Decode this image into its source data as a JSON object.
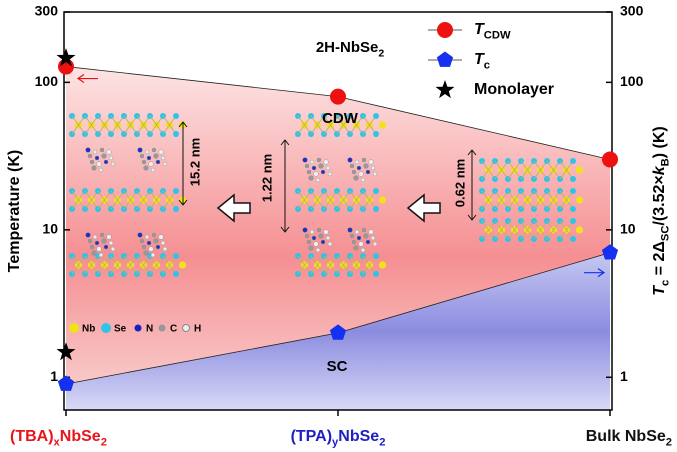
{
  "chart_data": {
    "type": "phase",
    "categories": [
      [
        {
          "text": "(TBA)"
        },
        {
          "text": "x",
          "sub": true
        },
        {
          "text": "NbSe"
        },
        {
          "text": "2",
          "sub": true
        }
      ],
      [
        {
          "text": "(TPA)"
        },
        {
          "text": "y",
          "sub": true
        },
        {
          "text": "NbSe"
        },
        {
          "text": "2",
          "sub": true
        }
      ],
      [
        {
          "text": "Bulk NbSe"
        },
        {
          "text": "2",
          "sub": true
        }
      ]
    ],
    "category_colors": [
      "#e8141c",
      "#2020c0",
      "#111111"
    ],
    "ylabel": [
      {
        "text": "Temperature (K)"
      }
    ],
    "y2label": [
      {
        "text": "T",
        "italic": true
      },
      {
        "text": "c",
        "sub": true
      },
      {
        "text": " = 2Δ"
      },
      {
        "text": "SC",
        "sub": true
      },
      {
        "text": "/(3.52×"
      },
      {
        "text": "k",
        "italic": true
      },
      {
        "text": "B",
        "sub": true
      },
      {
        "text": ") (K)"
      }
    ],
    "log_y": true,
    "ylim": [
      0.6,
      300
    ],
    "yticks": [
      1,
      10,
      100,
      300
    ],
    "y2lim": [
      0.6,
      300
    ],
    "y2ticks": [
      1,
      10,
      100,
      300
    ],
    "series": [
      {
        "name": [
          {
            "text": "T",
            "italic": true
          },
          {
            "text": "CDW",
            "sub": true
          }
        ],
        "color": "#ee1111",
        "marker": "circle",
        "values": [
          128,
          80,
          30
        ]
      },
      {
        "name": [
          {
            "text": "T",
            "italic": true
          },
          {
            "text": "c",
            "sub": true
          }
        ],
        "color": "#1530f0",
        "marker": "pentagon",
        "values": [
          0.9,
          2.0,
          7.0
        ]
      },
      {
        "name": [
          {
            "text": "Monolayer"
          }
        ],
        "color": "#000000",
        "marker": "star",
        "x": [
          0,
          0
        ],
        "values": [
          146,
          1.48
        ]
      }
    ],
    "annotations": {
      "material": [
        {
          "text": "2H-NbSe"
        },
        {
          "text": "2",
          "sub": true
        }
      ],
      "cdw": "CDW",
      "sc": "SC",
      "spacing_tba": "15.2 nm",
      "spacing_tpa": "1.22 nm",
      "spacing_bulk": "0.62 nm",
      "atoms": [
        "Nb",
        "Se",
        "N",
        "C",
        "H"
      ]
    }
  }
}
